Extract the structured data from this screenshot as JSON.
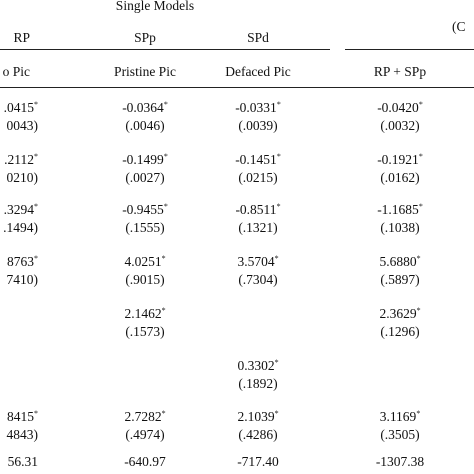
{
  "header": {
    "group": "Single Models",
    "right_cut": "(C",
    "columns": [
      "RP",
      "SPp",
      "SPd"
    ],
    "subcolumns": [
      "o Pic",
      "Pristine Pic",
      "Defaced Pic",
      "RP + SPp"
    ]
  },
  "table": {
    "rows": [
      [
        {
          "coef": ".0415",
          "star": "*",
          "se": "0043)"
        },
        {
          "coef": "-0.0364",
          "star": "*",
          "se": "(.0046)"
        },
        {
          "coef": "-0.0331",
          "star": "*",
          "se": "(.0039)"
        },
        {
          "coef": "-0.0420",
          "star": "*",
          "se": "(.0032)"
        }
      ],
      [
        {
          "coef": ".2112",
          "star": "*",
          "se": "0210)"
        },
        {
          "coef": "-0.1499",
          "star": "*",
          "se": "(.0027)"
        },
        {
          "coef": "-0.1451",
          "star": "*",
          "se": "(.0215)"
        },
        {
          "coef": "-0.1921",
          "star": "*",
          "se": "(.0162)"
        }
      ],
      [
        {
          "coef": ".3294",
          "star": "*",
          "se": ".1494)"
        },
        {
          "coef": "-0.9455",
          "star": "*",
          "se": "(.1555)"
        },
        {
          "coef": "-0.8511",
          "star": "*",
          "se": "(.1321)"
        },
        {
          "coef": "-1.1685",
          "star": "*",
          "se": "(.1038)"
        }
      ],
      [
        {
          "coef": "8763",
          "star": "*",
          "se": "7410)"
        },
        {
          "coef": "4.0251",
          "star": "*",
          "se": "(.9015)"
        },
        {
          "coef": "3.5704",
          "star": "*",
          "se": "(.7304)"
        },
        {
          "coef": "5.6880",
          "star": "*",
          "se": "(.5897)"
        }
      ],
      [
        null,
        {
          "coef": "2.1462",
          "star": "*",
          "se": "(.1573)"
        },
        null,
        {
          "coef": "2.3629",
          "star": "*",
          "se": "(.1296)"
        }
      ],
      [
        null,
        null,
        {
          "coef": "0.3302",
          "star": "*",
          "se": "(.1892)"
        },
        null
      ],
      [
        {
          "coef": "8415",
          "star": "*",
          "se": "4843)"
        },
        {
          "coef": "2.7282",
          "star": "*",
          "se": "(.4974)"
        },
        {
          "coef": "2.1039",
          "star": "*",
          "se": "(.4286)"
        },
        {
          "coef": "3.1169",
          "star": "*",
          "se": "(.3505)"
        }
      ],
      [
        {
          "coef": "56.31"
        },
        {
          "coef": "-640.97"
        },
        {
          "coef": "-717.40"
        },
        {
          "coef": "-1307.38"
        }
      ]
    ]
  }
}
